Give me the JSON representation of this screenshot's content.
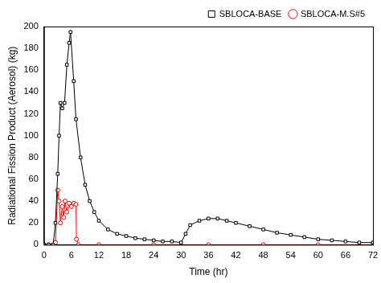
{
  "chart_data": {
    "type": "line",
    "x_label": "Time (hr)",
    "y_label": "Radiational Fission Product (Aerosol) (kg)",
    "xlim": [
      0,
      72
    ],
    "xticks": [
      0,
      6,
      12,
      18,
      24,
      30,
      36,
      42,
      48,
      54,
      60,
      66,
      72
    ],
    "ylim": [
      0,
      200
    ],
    "yticks": [
      0,
      20,
      40,
      60,
      80,
      100,
      120,
      140,
      160,
      180,
      200
    ],
    "grid": false,
    "legend": "upper right",
    "series": [
      {
        "name": "SBLOCA-BASE",
        "color": "#000000",
        "marker": "square",
        "line_style": "solid",
        "x": [
          0,
          1,
          2,
          2.5,
          3,
          3.3,
          3.6,
          4,
          4.5,
          5,
          5.5,
          5.8,
          6.5,
          7,
          8,
          9,
          10,
          11,
          12,
          14,
          16,
          18,
          20,
          22,
          24,
          26,
          28,
          30,
          31,
          32,
          34,
          36,
          38,
          40,
          42,
          45,
          48,
          51,
          54,
          57,
          60,
          63,
          66,
          69,
          72
        ],
        "values": [
          0,
          0,
          0,
          20,
          65,
          100,
          130,
          125,
          130,
          165,
          185,
          195,
          150,
          115,
          80,
          55,
          40,
          30,
          22,
          14,
          10,
          8,
          6,
          5,
          4,
          3,
          3,
          2,
          10,
          18,
          22,
          24,
          24,
          22,
          20,
          17,
          14,
          11,
          9,
          7,
          5,
          4,
          3,
          2,
          2
        ]
      },
      {
        "name": "SBLOCA-M.S#5",
        "color": "#ff0000",
        "marker": "circle",
        "line_style": "solid",
        "x": [
          0,
          1,
          2,
          2.5,
          3,
          3.3,
          3.6,
          4,
          4.3,
          4.6,
          5,
          5.5,
          6,
          6.5,
          7,
          7.1,
          7.5,
          12,
          24,
          36,
          48,
          60,
          72
        ],
        "values": [
          0,
          0,
          0,
          2,
          50,
          40,
          20,
          35,
          25,
          40,
          30,
          38,
          35,
          38,
          37,
          5,
          0,
          0,
          0,
          0,
          0,
          0,
          0
        ]
      }
    ]
  }
}
